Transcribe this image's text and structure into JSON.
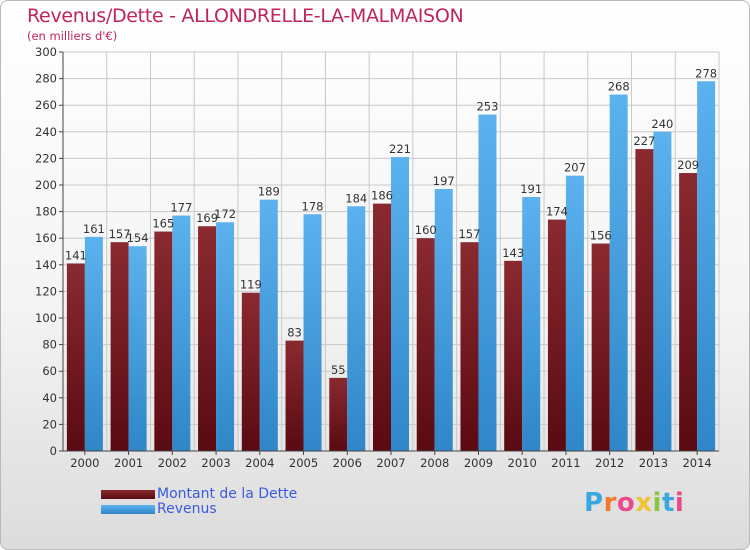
{
  "title": "Revenus/Dette - ALLONDRELLE-LA-MALMAISON",
  "subtitle": "(en milliers d'€)",
  "logo_text": "Proxiti",
  "colors": {
    "dette": "#7a1f26",
    "revenus": "#4aa3e2",
    "title": "#c0245a",
    "legend_text": "#3a5ae0",
    "logo": [
      "#3aa8e0",
      "#f07a2a",
      "#e94b8a",
      "#f2c230",
      "#8cc63f",
      "#3aa8e0",
      "#e94b8a"
    ]
  },
  "chart_data": {
    "type": "bar",
    "title": "Revenus/Dette - ALLONDRELLE-LA-MALMAISON",
    "ylabel": "(en milliers d'€)",
    "xlabel": "",
    "categories": [
      "2000",
      "2001",
      "2002",
      "2003",
      "2004",
      "2005",
      "2006",
      "2007",
      "2008",
      "2009",
      "2010",
      "2011",
      "2012",
      "2013",
      "2014"
    ],
    "series": [
      {
        "name": "Montant de la Dette",
        "values": [
          141,
          157,
          165,
          169,
          119,
          83,
          55,
          186,
          160,
          157,
          143,
          174,
          156,
          227,
          209
        ]
      },
      {
        "name": "Revenus",
        "values": [
          161,
          154,
          177,
          172,
          189,
          178,
          184,
          221,
          197,
          253,
          191,
          207,
          268,
          240,
          278
        ]
      }
    ],
    "ylim": [
      0,
      300
    ],
    "yticks": [
      0,
      20,
      40,
      60,
      80,
      100,
      120,
      140,
      160,
      180,
      200,
      220,
      240,
      260,
      280,
      300
    ],
    "grid": true,
    "legend_position": "bottom-left"
  }
}
